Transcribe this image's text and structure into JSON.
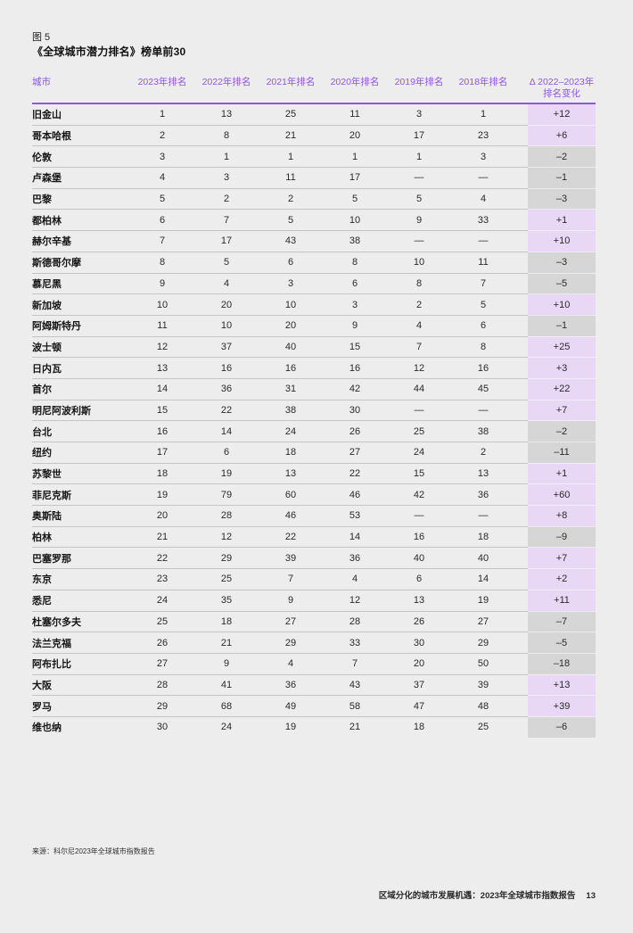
{
  "figure": {
    "label": "图 5",
    "title": "《全球城市潜力排名》榜单前30"
  },
  "table": {
    "city_header": "城市",
    "year_headers": [
      "2023年排名",
      "2022年排名",
      "2021年排名",
      "2020年排名",
      "2019年排名",
      "2018年排名"
    ],
    "delta_header": {
      "line1": "Δ 2022–2023年",
      "line2": "排名变化"
    },
    "missing_value": "—",
    "rows": [
      {
        "city": "旧金山",
        "ranks": [
          "1",
          "13",
          "25",
          "11",
          "3",
          "1"
        ],
        "delta": "+12"
      },
      {
        "city": "哥本哈根",
        "ranks": [
          "2",
          "8",
          "21",
          "20",
          "17",
          "23"
        ],
        "delta": "+6"
      },
      {
        "city": "伦敦",
        "ranks": [
          "3",
          "1",
          "1",
          "1",
          "1",
          "3"
        ],
        "delta": "–2"
      },
      {
        "city": "卢森堡",
        "ranks": [
          "4",
          "3",
          "11",
          "17",
          "—",
          "—"
        ],
        "delta": "–1"
      },
      {
        "city": "巴黎",
        "ranks": [
          "5",
          "2",
          "2",
          "5",
          "5",
          "4"
        ],
        "delta": "–3"
      },
      {
        "city": "都柏林",
        "ranks": [
          "6",
          "7",
          "5",
          "10",
          "9",
          "33"
        ],
        "delta": "+1"
      },
      {
        "city": "赫尔辛基",
        "ranks": [
          "7",
          "17",
          "43",
          "38",
          "—",
          "—"
        ],
        "delta": "+10"
      },
      {
        "city": "斯德哥尔摩",
        "ranks": [
          "8",
          "5",
          "6",
          "8",
          "10",
          "11"
        ],
        "delta": "–3"
      },
      {
        "city": "慕尼黑",
        "ranks": [
          "9",
          "4",
          "3",
          "6",
          "8",
          "7"
        ],
        "delta": "–5"
      },
      {
        "city": "新加坡",
        "ranks": [
          "10",
          "20",
          "10",
          "3",
          "2",
          "5"
        ],
        "delta": "+10"
      },
      {
        "city": "阿姆斯特丹",
        "ranks": [
          "11",
          "10",
          "20",
          "9",
          "4",
          "6"
        ],
        "delta": "–1"
      },
      {
        "city": "波士顿",
        "ranks": [
          "12",
          "37",
          "40",
          "15",
          "7",
          "8"
        ],
        "delta": "+25"
      },
      {
        "city": "日内瓦",
        "ranks": [
          "13",
          "16",
          "16",
          "16",
          "12",
          "16"
        ],
        "delta": "+3"
      },
      {
        "city": "首尔",
        "ranks": [
          "14",
          "36",
          "31",
          "42",
          "44",
          "45"
        ],
        "delta": "+22"
      },
      {
        "city": "明尼阿波利斯",
        "ranks": [
          "15",
          "22",
          "38",
          "30",
          "—",
          "—"
        ],
        "delta": "+7"
      },
      {
        "city": "台北",
        "ranks": [
          "16",
          "14",
          "24",
          "26",
          "25",
          "38"
        ],
        "delta": "–2"
      },
      {
        "city": "纽约",
        "ranks": [
          "17",
          "6",
          "18",
          "27",
          "24",
          "2"
        ],
        "delta": "–11"
      },
      {
        "city": "苏黎世",
        "ranks": [
          "18",
          "19",
          "13",
          "22",
          "15",
          "13"
        ],
        "delta": "+1"
      },
      {
        "city": "菲尼克斯",
        "ranks": [
          "19",
          "79",
          "60",
          "46",
          "42",
          "36"
        ],
        "delta": "+60"
      },
      {
        "city": "奥斯陆",
        "ranks": [
          "20",
          "28",
          "46",
          "53",
          "—",
          "—"
        ],
        "delta": "+8"
      },
      {
        "city": "柏林",
        "ranks": [
          "21",
          "12",
          "22",
          "14",
          "16",
          "18"
        ],
        "delta": "–9"
      },
      {
        "city": "巴塞罗那",
        "ranks": [
          "22",
          "29",
          "39",
          "36",
          "40",
          "40"
        ],
        "delta": "+7"
      },
      {
        "city": "东京",
        "ranks": [
          "23",
          "25",
          "7",
          "4",
          "6",
          "14"
        ],
        "delta": "+2"
      },
      {
        "city": "悉尼",
        "ranks": [
          "24",
          "35",
          "9",
          "12",
          "13",
          "19"
        ],
        "delta": "+11"
      },
      {
        "city": "杜塞尔多夫",
        "ranks": [
          "25",
          "18",
          "27",
          "28",
          "26",
          "27"
        ],
        "delta": "–7"
      },
      {
        "city": "法兰克福",
        "ranks": [
          "26",
          "21",
          "29",
          "33",
          "30",
          "29"
        ],
        "delta": "–5"
      },
      {
        "city": "阿布扎比",
        "ranks": [
          "27",
          "9",
          "4",
          "7",
          "20",
          "50"
        ],
        "delta": "–18"
      },
      {
        "city": "大阪",
        "ranks": [
          "28",
          "41",
          "36",
          "43",
          "37",
          "39"
        ],
        "delta": "+13"
      },
      {
        "city": "罗马",
        "ranks": [
          "29",
          "68",
          "49",
          "58",
          "47",
          "48"
        ],
        "delta": "+39"
      },
      {
        "city": "维也纳",
        "ranks": [
          "30",
          "24",
          "19",
          "21",
          "18",
          "25"
        ],
        "delta": "–6"
      }
    ]
  },
  "footer": {
    "source": "来源：科尔尼2023年全球城市指数报告",
    "report_title": "区域分化的城市发展机遇：2023年全球城市指数报告",
    "page_number": "13"
  },
  "colors": {
    "accent_purple": "#8e55e9",
    "positive_bg": "#e8d8f6",
    "negative_bg": "#d7d6d7",
    "page_bg": "#ededed"
  }
}
